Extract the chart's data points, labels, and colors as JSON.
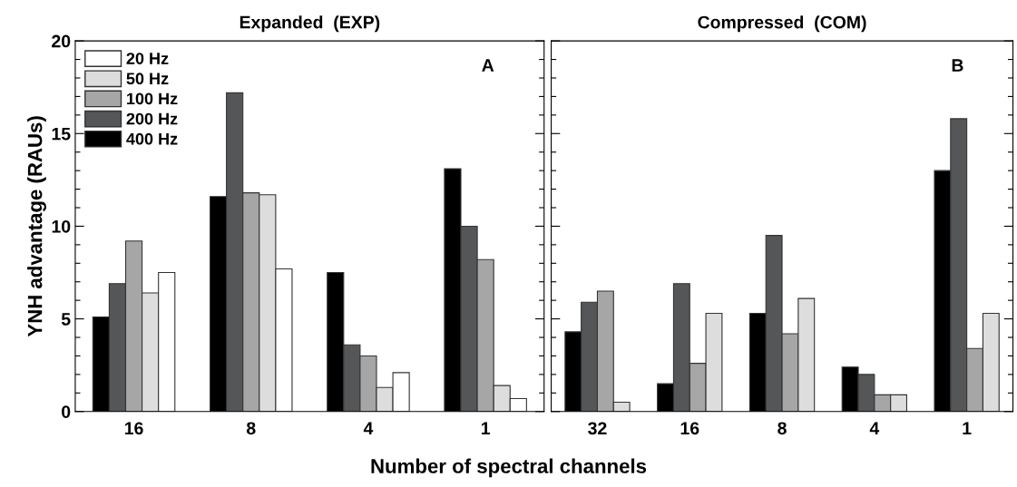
{
  "chart_data": [
    {
      "type": "bar",
      "title": "Expanded  (EXP)",
      "ylabel": "YNH advantage (RAUs)",
      "xlabel": "Number of spectral channels",
      "categories": [
        "16",
        "8",
        "4",
        "1"
      ],
      "series": [
        {
          "name": "400 Hz",
          "color": "#000000",
          "values": [
            5.1,
            11.6,
            7.5,
            13.1
          ]
        },
        {
          "name": "200 Hz",
          "color": "#555658",
          "values": [
            6.9,
            17.2,
            3.6,
            10.0
          ]
        },
        {
          "name": "100 Hz",
          "color": "#a6a6a6",
          "values": [
            9.2,
            11.8,
            3.0,
            8.2
          ]
        },
        {
          "name": "50 Hz",
          "color": "#dcdddc",
          "values": [
            6.4,
            11.7,
            1.3,
            1.4
          ]
        },
        {
          "name": "20 Hz",
          "color": "#ffffff",
          "values": [
            7.5,
            7.7,
            2.1,
            0.7
          ]
        }
      ],
      "ylim": [
        0,
        20
      ],
      "yticks": [
        0,
        {
          "value": 1,
          "label": null
        },
        {
          "value": 2,
          "label": null
        },
        {
          "value": 3,
          "label": null
        },
        {
          "value": 4,
          "label": null
        },
        5,
        {
          "value": 6,
          "label": null
        },
        {
          "value": 7,
          "label": null
        },
        {
          "value": 8,
          "label": null
        },
        {
          "value": 9,
          "label": null
        },
        10,
        {
          "value": 11,
          "label": null
        },
        {
          "value": 12,
          "label": null
        },
        {
          "value": 13,
          "label": null
        },
        {
          "value": 14,
          "label": null
        },
        15,
        {
          "value": 16,
          "label": null
        },
        {
          "value": 17,
          "label": null
        },
        {
          "value": 18,
          "label": null
        },
        {
          "value": 19,
          "label": null
        },
        20
      ],
      "annotations": [
        "A"
      ],
      "legend": "top left",
      "grid": false
    },
    {
      "type": "bar",
      "title": "Compressed  (COM)",
      "categories": [
        "32",
        "16",
        "8",
        "4",
        "1"
      ],
      "series": [
        {
          "color": "#000000",
          "values": [
            4.3,
            1.5,
            5.3,
            2.4,
            13.0
          ]
        },
        {
          "color": "#555658",
          "values": [
            5.9,
            6.9,
            9.5,
            2.0,
            15.8
          ]
        },
        {
          "color": "#a6a6a6",
          "values": [
            6.5,
            2.6,
            4.2,
            0.9,
            3.4
          ]
        },
        {
          "color": "#dcdddc",
          "values": [
            0.5,
            5.3,
            6.1,
            0.9,
            5.3
          ]
        }
      ],
      "ylim": [
        0,
        20
      ],
      "yticks": [
        0,
        {
          "value": 1,
          "label": null
        },
        {
          "value": 2,
          "label": null
        },
        {
          "value": 3,
          "label": null
        },
        {
          "value": 4,
          "label": null
        },
        5,
        {
          "value": 6,
          "label": null
        },
        {
          "value": 7,
          "label": null
        },
        {
          "value": 8,
          "label": null
        },
        {
          "value": 9,
          "label": null
        },
        10,
        {
          "value": 11,
          "label": null
        },
        {
          "value": 12,
          "label": null
        },
        {
          "value": 13,
          "label": null
        },
        {
          "value": 14,
          "label": null
        },
        15,
        {
          "value": 16,
          "label": null
        },
        {
          "value": 17,
          "label": null
        },
        {
          "value": 18,
          "label": null
        },
        {
          "value": 19,
          "label": null
        },
        20
      ],
      "tick_labels": "x",
      "annotations": [
        "B"
      ],
      "grid": false
    }
  ]
}
